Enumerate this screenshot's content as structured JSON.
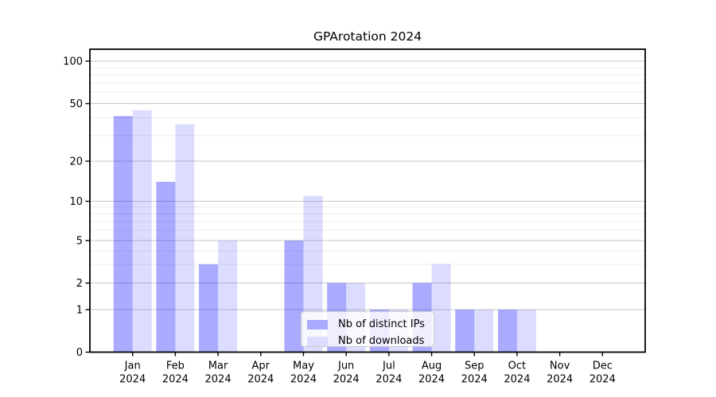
{
  "title": "GPArotation 2024",
  "chart_data": {
    "type": "bar",
    "title": "GPArotation 2024",
    "categories": [
      "Jan 2024",
      "Feb 2024",
      "Mar 2024",
      "Apr 2024",
      "May 2024",
      "Jun 2024",
      "Jul 2024",
      "Aug 2024",
      "Sep 2024",
      "Oct 2024",
      "Nov 2024",
      "Dec 2024"
    ],
    "series": [
      {
        "name": "Nb of distinct IPs",
        "values": [
          41,
          14,
          3,
          0,
          5,
          2,
          1,
          2,
          1,
          1,
          0,
          0
        ],
        "fill": "rgba(0,0,255,0.335)",
        "legend_color": "#aaaaff"
      },
      {
        "name": "Nb of downloads",
        "values": [
          45,
          36,
          5,
          0,
          11,
          2,
          1,
          3,
          1,
          1,
          0,
          0
        ],
        "fill": "rgba(0,0,255,0.138)",
        "legend_color": "#dcdcff"
      }
    ],
    "xlabel": "",
    "ylabel": "",
    "yscale": "log-like",
    "yticks": [
      0,
      1,
      2,
      5,
      10,
      20,
      50,
      100
    ],
    "minor_yticks": [
      3,
      4,
      6,
      7,
      8,
      9,
      30,
      40,
      60,
      70,
      80,
      90
    ],
    "ylim": [
      0,
      120
    ],
    "grid": "horizontal",
    "legend_position": "lower center"
  },
  "colors": {
    "bar_distinct_ips": "#aaaaff",
    "bar_downloads": "#dcdcff",
    "major_grid": "#c9c9c9",
    "minor_grid": "#ececec",
    "axis": "#000000",
    "legend_border": "#cccccc",
    "legend_bg": "rgba(255,255,255,0.8)"
  }
}
